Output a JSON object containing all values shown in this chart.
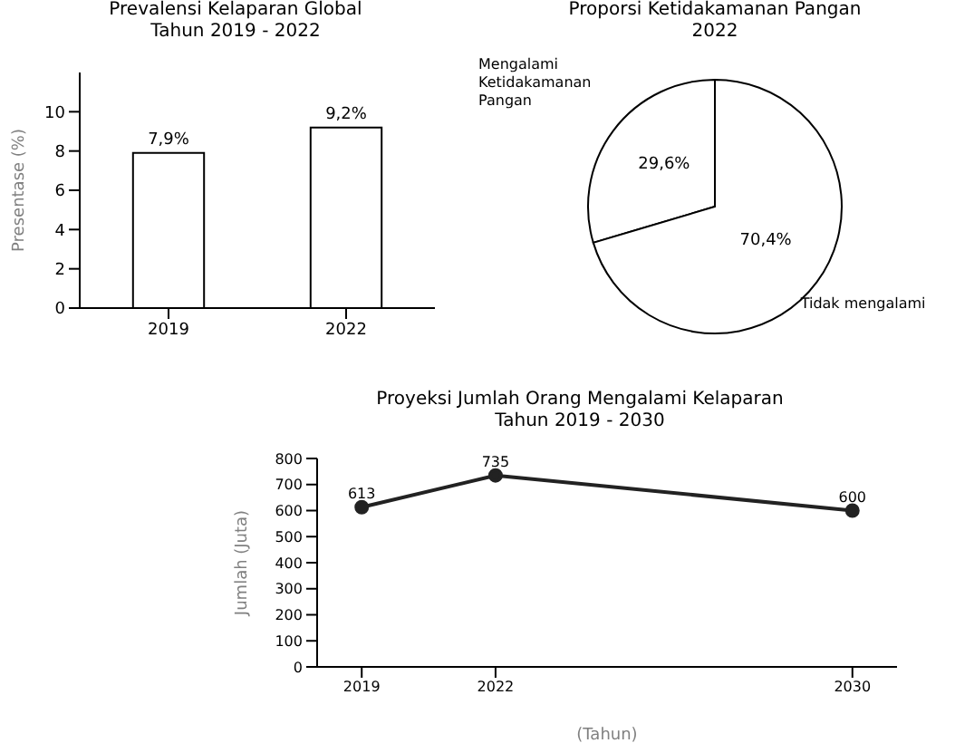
{
  "chart_data": [
    {
      "type": "bar",
      "title": "Prevalensi Kelaparan Global",
      "subtitle": "Tahun 2019 - 2022",
      "ylabel": "Presentase (%)",
      "categories": [
        "2019",
        "2022"
      ],
      "values": [
        7.9,
        9.2
      ],
      "value_labels": [
        "7,9%",
        "9,2%"
      ],
      "color": "#ffffff",
      "ylim": [
        0,
        12
      ],
      "yticks": [
        0,
        2,
        4,
        6,
        8,
        10
      ],
      "grid": false,
      "legend": false
    },
    {
      "type": "pie",
      "title": "Proporsi Ketidakamanan Pangan",
      "subtitle": "2022",
      "categories": [
        "Mengalami Ketidakamanan Pangan",
        "Tidak mengalami"
      ],
      "values": [
        29.6,
        70.4
      ],
      "value_labels": [
        "29,6%",
        "70,4%"
      ],
      "colors": [
        "#ffffff",
        "#ffffff"
      ],
      "legend": false
    },
    {
      "type": "line",
      "title": "Proyeksi Jumlah Orang Mengalami Kelaparan",
      "subtitle": "Tahun 2019 - 2030",
      "xlabel": "(Tahun)",
      "ylabel": "Jumlah (Juta)",
      "x": [
        2019,
        2022,
        2030
      ],
      "values": [
        613,
        735,
        600
      ],
      "value_labels": [
        "613",
        "735",
        "600"
      ],
      "color": "#222222",
      "xlim": [
        2018,
        2031
      ],
      "xticks": [
        2019,
        2022,
        2030
      ],
      "ylim": [
        0,
        800
      ],
      "yticks": [
        0,
        100,
        200,
        300,
        400,
        500,
        600,
        700,
        800
      ],
      "grid": false,
      "legend": false,
      "marker": "circle"
    }
  ]
}
